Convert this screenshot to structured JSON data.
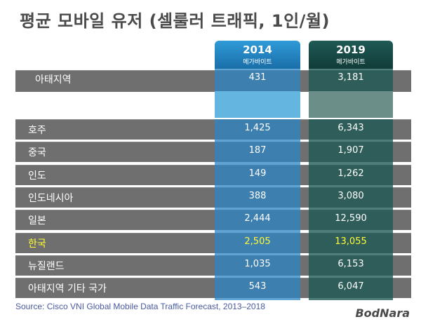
{
  "title": "평균 모바일 유저 (셀룰러 트래픽, 1인/월)",
  "columns": [
    {
      "year": "2014",
      "unit": "메가바이트"
    },
    {
      "year": "2019",
      "unit": "메가바이트"
    }
  ],
  "chart_data": {
    "type": "table",
    "title": "평균 모바일 유저 (셀룰러 트래픽, 1인/월)",
    "columns": [
      "2014",
      "2019"
    ],
    "unit": "메가바이트",
    "rows": [
      {
        "label": "아태지역",
        "v2014": "431",
        "v2019": "3,181"
      },
      {
        "label": "호주",
        "v2014": "1,425",
        "v2019": "6,343"
      },
      {
        "label": "중국",
        "v2014": "187",
        "v2019": "1,907"
      },
      {
        "label": "인도",
        "v2014": "149",
        "v2019": "1,262"
      },
      {
        "label": "인도네시아",
        "v2014": "388",
        "v2019": "3,080"
      },
      {
        "label": "일본",
        "v2014": "2,444",
        "v2019": "12,590"
      },
      {
        "label": "한국",
        "v2014": "2,505",
        "v2019": "13,055"
      },
      {
        "label": "뉴질랜드",
        "v2014": "1,035",
        "v2019": "6,153"
      },
      {
        "label": "아태지역 기타 국가",
        "v2014": "543",
        "v2019": "6,047"
      }
    ],
    "highlight_row": "한국",
    "highlight_color": "#ffff33"
  },
  "source": "Source: Cisco VNI Global Mobile Data Traffic Forecast, 2013–2018",
  "logo": "BodNara"
}
